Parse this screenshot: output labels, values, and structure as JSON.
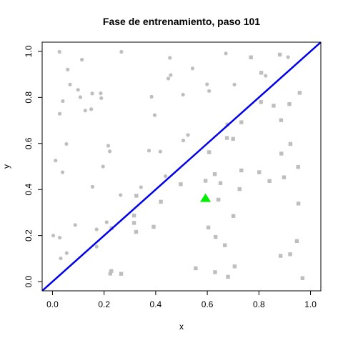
{
  "chart_data": {
    "type": "scatter",
    "title": "Fase de entrenamiento, paso 101",
    "xlabel": "x",
    "ylabel": "y",
    "xlim": [
      -0.04,
      1.04
    ],
    "ylim": [
      -0.04,
      1.04
    ],
    "x_ticks": [
      0.0,
      0.2,
      0.4,
      0.6,
      0.8,
      1.0
    ],
    "y_ticks": [
      0.0,
      0.2,
      0.4,
      0.6,
      0.8,
      1.0
    ],
    "x_tick_labels": [
      "0.0",
      "0.2",
      "0.4",
      "0.6",
      "0.8",
      "1.0"
    ],
    "y_tick_labels": [
      "0.0",
      "0.2",
      "0.4",
      "0.6",
      "0.8",
      "1.0"
    ],
    "grid": false,
    "colors": {
      "circles": "#bebebe",
      "squares": "#bebebe",
      "line": "#0000ee",
      "marker": "#00ee00"
    },
    "reference_line": {
      "slope": 1,
      "intercept": 0
    },
    "highlight": {
      "shape": "triangle",
      "x": 0.593,
      "y": 0.36
    },
    "series": [
      {
        "marker": "circle",
        "points": [
          [
            0.027,
            0.998
          ],
          [
            0.267,
            0.998
          ],
          [
            0.059,
            0.921
          ],
          [
            0.114,
            0.964
          ],
          [
            0.455,
            0.972
          ],
          [
            0.068,
            0.856
          ],
          [
            0.099,
            0.833
          ],
          [
            0.154,
            0.817
          ],
          [
            0.187,
            0.818
          ],
          [
            0.108,
            0.801
          ],
          [
            0.543,
            0.926
          ],
          [
            0.458,
            0.897
          ],
          [
            0.449,
            0.882
          ],
          [
            0.04,
            0.784
          ],
          [
            0.127,
            0.743
          ],
          [
            0.15,
            0.749
          ],
          [
            0.384,
            0.803
          ],
          [
            0.506,
            0.812
          ],
          [
            0.607,
            0.828
          ],
          [
            0.028,
            0.729
          ],
          [
            0.396,
            0.723
          ],
          [
            0.672,
            0.991
          ],
          [
            0.705,
            0.856
          ],
          [
            0.826,
            0.894
          ],
          [
            0.913,
            0.975
          ],
          [
            0.054,
            0.598
          ],
          [
            0.216,
            0.59
          ],
          [
            0.012,
            0.526
          ],
          [
            0.222,
            0.566
          ],
          [
            0.374,
            0.569
          ],
          [
            0.418,
            0.565
          ],
          [
            0.525,
            0.637
          ],
          [
            0.507,
            0.613
          ],
          [
            0.039,
            0.475
          ],
          [
            0.196,
            0.5
          ],
          [
            0.155,
            0.412
          ],
          [
            0.264,
            0.376
          ],
          [
            0.343,
            0.41
          ],
          [
            0.438,
            0.458
          ],
          [
            0.003,
            0.2
          ],
          [
            0.028,
            0.191
          ],
          [
            0.055,
            0.124
          ],
          [
            0.032,
            0.101
          ],
          [
            0.088,
            0.246
          ],
          [
            0.171,
            0.227
          ],
          [
            0.21,
            0.258
          ],
          [
            0.171,
            0.152
          ],
          [
            0.189,
            0.797
          ],
          [
            0.599,
            0.857
          ]
        ]
      },
      {
        "marker": "square",
        "points": [
          [
            0.678,
            0.682
          ],
          [
            0.769,
            0.974
          ],
          [
            0.809,
            0.907
          ],
          [
            0.881,
            0.986
          ],
          [
            0.958,
            0.82
          ],
          [
            0.808,
            0.78
          ],
          [
            0.886,
            0.701
          ],
          [
            0.857,
            0.764
          ],
          [
            0.918,
            0.771
          ],
          [
            0.676,
            0.624
          ],
          [
            0.732,
            0.692
          ],
          [
            0.7,
            0.62
          ],
          [
            0.922,
            0.598
          ],
          [
            0.887,
            0.556
          ],
          [
            0.607,
            0.562
          ],
          [
            0.732,
            0.483
          ],
          [
            0.801,
            0.475
          ],
          [
            0.629,
            0.467
          ],
          [
            0.593,
            0.438
          ],
          [
            0.651,
            0.428
          ],
          [
            0.841,
            0.437
          ],
          [
            0.897,
            0.453
          ],
          [
            0.952,
            0.498
          ],
          [
            0.725,
            0.402
          ],
          [
            0.643,
            0.356
          ],
          [
            0.42,
            0.347
          ],
          [
            0.497,
            0.423
          ],
          [
            0.953,
            0.339
          ],
          [
            0.316,
            0.287
          ],
          [
            0.325,
            0.373
          ],
          [
            0.701,
            0.285
          ],
          [
            0.316,
            0.255
          ],
          [
            0.604,
            0.235
          ],
          [
            0.324,
            0.216
          ],
          [
            0.392,
            0.238
          ],
          [
            0.229,
            0.232
          ],
          [
            0.632,
            0.194
          ],
          [
            0.668,
            0.158
          ],
          [
            0.947,
            0.176
          ],
          [
            0.884,
            0.112
          ],
          [
            0.921,
            0.119
          ],
          [
            0.224,
            0.035
          ],
          [
            0.228,
            0.046
          ],
          [
            0.266,
            0.034
          ],
          [
            0.555,
            0.058
          ],
          [
            0.63,
            0.041
          ],
          [
            0.68,
            0.021
          ],
          [
            0.706,
            0.066
          ],
          [
            0.969,
            0.015
          ]
        ]
      }
    ]
  }
}
